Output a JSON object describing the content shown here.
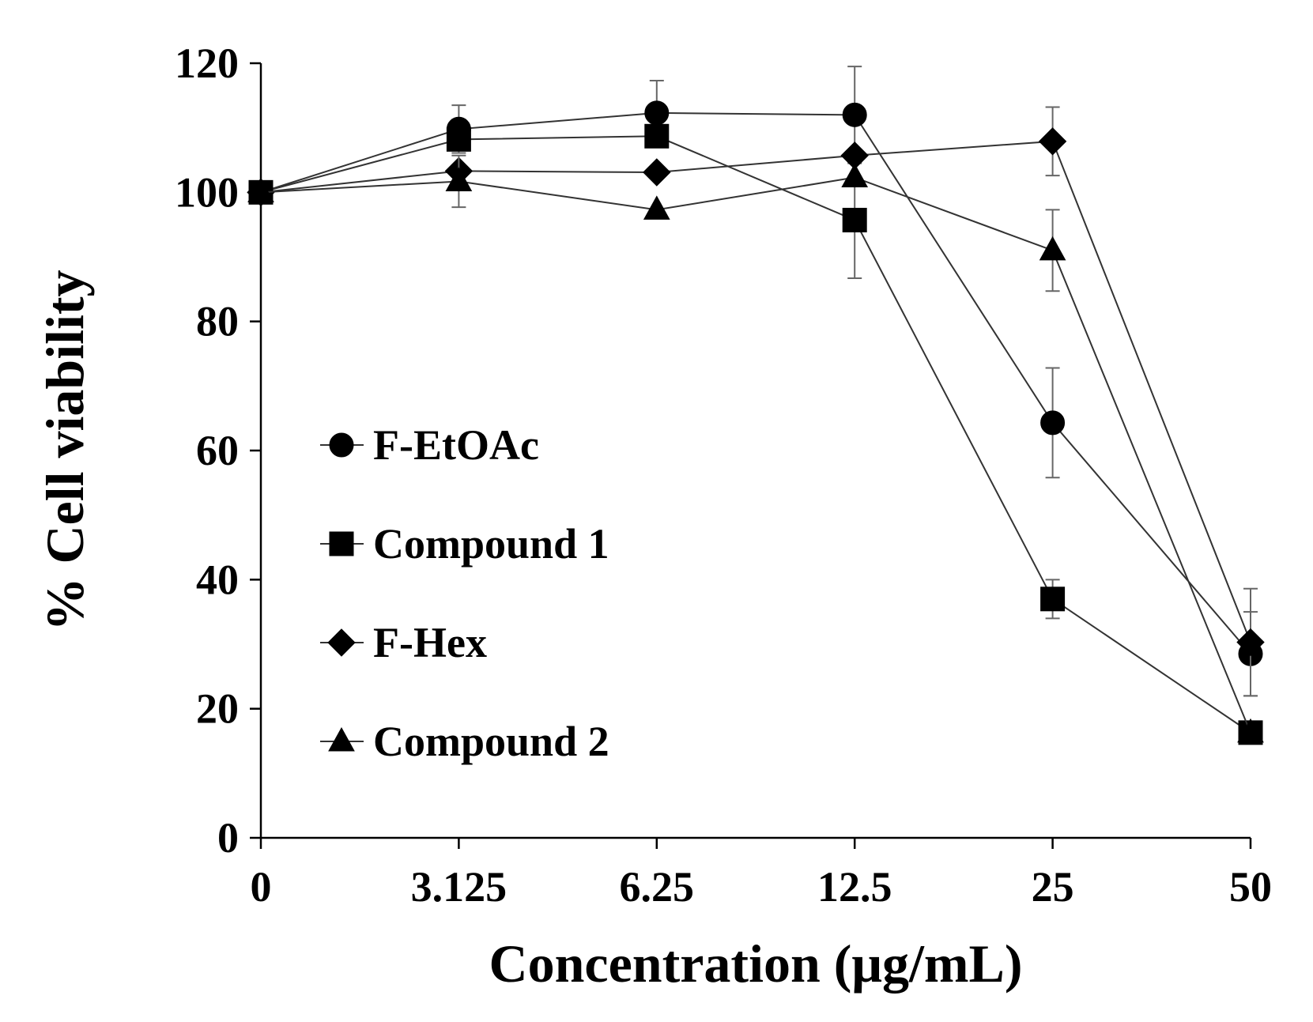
{
  "chart_data": {
    "type": "line",
    "title": "",
    "xlabel": "Concentration (μg/mL)",
    "ylabel": "% Cell viability",
    "categories": [
      "0",
      "3.125",
      "6.25",
      "12.5",
      "25",
      "50"
    ],
    "ylim": [
      0,
      120
    ],
    "yticks": [
      0,
      20,
      40,
      60,
      80,
      100,
      120
    ],
    "grid": false,
    "legend_position": "left-center",
    "series": [
      {
        "name": "F-EtOAc",
        "marker": "circle",
        "values": [
          100,
          109.8,
          112.3,
          112,
          64.3,
          28.5
        ],
        "errors": [
          0,
          3.7,
          5,
          7.5,
          8.5,
          6.5
        ]
      },
      {
        "name": "Compound 1",
        "marker": "square",
        "values": [
          100,
          108.2,
          108.7,
          95.7,
          37,
          16.3
        ],
        "errors": [
          0,
          0,
          0,
          9,
          3,
          0
        ]
      },
      {
        "name": "F-Hex",
        "marker": "diamond",
        "values": [
          100,
          103.3,
          103.1,
          105.7,
          107.9,
          30.3
        ],
        "errors": [
          0,
          0,
          0,
          0,
          5.3,
          8.3
        ]
      },
      {
        "name": "Compound 2",
        "marker": "triangle",
        "values": [
          100,
          101.7,
          97.3,
          102.3,
          91,
          16.3
        ],
        "errors": [
          0,
          4,
          0,
          0,
          6.3,
          0
        ]
      }
    ]
  }
}
